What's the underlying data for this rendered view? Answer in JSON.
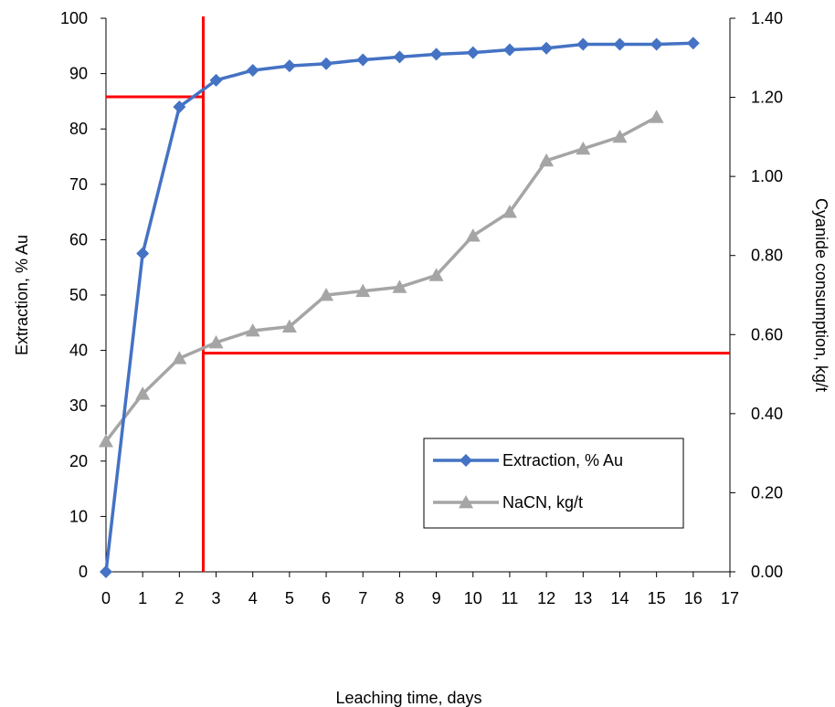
{
  "chart_data": {
    "type": "line",
    "xlabel": "Leaching time, days",
    "ylabel_left": "Extraction, % Au",
    "ylabel_right": "Cyanide consumption, kg/t",
    "xlim": [
      0,
      17
    ],
    "ylim_left": [
      0,
      100
    ],
    "ylim_right": [
      0,
      1.4
    ],
    "x_ticks": [
      "0",
      "1",
      "2",
      "3",
      "4",
      "5",
      "6",
      "7",
      "8",
      "9",
      "10",
      "11",
      "12",
      "13",
      "14",
      "15",
      "16",
      "17"
    ],
    "y_left_ticks": [
      "0",
      "10",
      "20",
      "30",
      "40",
      "50",
      "60",
      "70",
      "80",
      "90",
      "100"
    ],
    "y_right_ticks": [
      "0.00",
      "0.20",
      "0.40",
      "0.60",
      "0.80",
      "1.00",
      "1.20",
      "1.40"
    ],
    "grid": false,
    "legend_position": "lower-right",
    "series": [
      {
        "name": "Extraction, % Au",
        "axis": "left",
        "marker": "diamond",
        "color": "#4472C4",
        "x": [
          0,
          1,
          2,
          3,
          4,
          5,
          6,
          7,
          8,
          9,
          10,
          11,
          12,
          13,
          14,
          15,
          16
        ],
        "values": [
          0,
          57.5,
          84,
          88.8,
          90.6,
          91.4,
          91.8,
          92.5,
          93.0,
          93.5,
          93.8,
          94.3,
          94.6,
          95.3,
          95.3,
          95.3,
          95.5
        ]
      },
      {
        "name": "NaCN, kg/t",
        "axis": "right",
        "marker": "triangle",
        "color": "#A5A5A5",
        "x": [
          0,
          1,
          2,
          3,
          4,
          5,
          6,
          7,
          8,
          9,
          10,
          11,
          12,
          13,
          14,
          15
        ],
        "values": [
          0.33,
          0.45,
          0.54,
          0.58,
          0.61,
          0.62,
          0.7,
          0.71,
          0.72,
          0.75,
          0.85,
          0.91,
          1.04,
          1.07,
          1.1,
          1.15
        ]
      }
    ],
    "reference_lines": {
      "color": "#FF0000",
      "vertical_x": 2.65,
      "horizontal_left_y": 85.8,
      "horizontal_right_y": 0.553
    }
  }
}
